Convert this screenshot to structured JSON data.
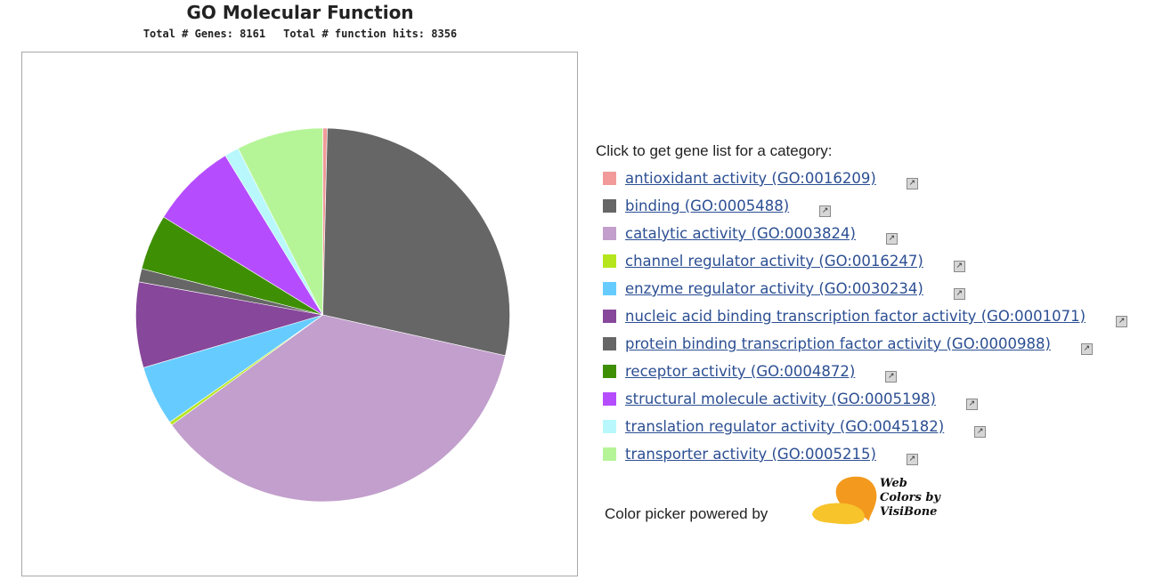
{
  "chart_data": {
    "type": "pie",
    "title": "GO Molecular Function",
    "subtitle_genes": "Total # Genes: 8161",
    "subtitle_hits": "Total # function hits: 8356",
    "slices": [
      {
        "name": "antioxidant activity (GO:0016209)",
        "value": 0.4,
        "color": "#f29a9a"
      },
      {
        "name": "binding (GO:0005488)",
        "value": 29.3,
        "color": "#666666"
      },
      {
        "name": "catalytic activity (GO:0003824)",
        "value": 38.0,
        "color": "#c29fcc"
      },
      {
        "name": "channel regulator activity (GO:0016247)",
        "value": 0.3,
        "color": "#b5e61d"
      },
      {
        "name": "enzyme regulator activity (GO:0030234)",
        "value": 5.4,
        "color": "#66ccff"
      },
      {
        "name": "nucleic acid binding transcription factor activity (GO:0001071)",
        "value": 7.7,
        "color": "#87479b"
      },
      {
        "name": "protein binding transcription factor activity (GO:0000988)",
        "value": 1.2,
        "color": "#666666"
      },
      {
        "name": "receptor activity (GO:0004872)",
        "value": 5.0,
        "color": "#3f8f04"
      },
      {
        "name": "structural molecule activity (GO:0005198)",
        "value": 7.8,
        "color": "#b54dff"
      },
      {
        "name": "translation regulator activity (GO:0045182)",
        "value": 1.3,
        "color": "#b8f8fc"
      },
      {
        "name": "transporter activity (GO:0005215)",
        "value": 7.8,
        "color": "#b5f598"
      }
    ]
  },
  "legend": {
    "heading": "Click to get gene list for a category:"
  },
  "footer": {
    "color_picker_text": "Color picker powered by",
    "logo_line1": "Web",
    "logo_line2": "Colors by",
    "logo_line3": "VisiBone"
  }
}
